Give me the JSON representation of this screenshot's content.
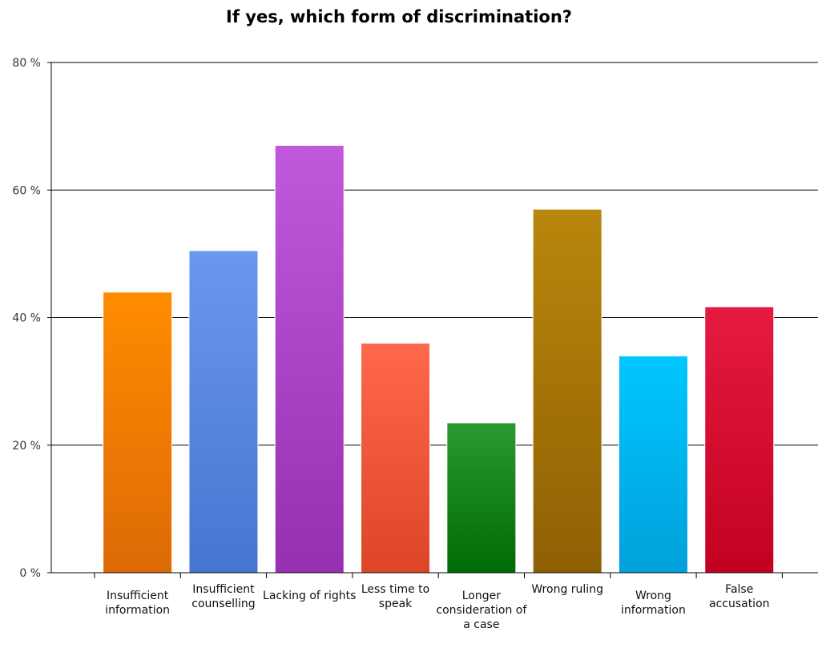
{
  "chart_data": {
    "type": "bar",
    "title": "If yes, which form of discrimination?",
    "xlabel": "",
    "ylabel": "",
    "ylim": [
      0,
      80
    ],
    "y_ticks": [
      "0 %",
      "20 %",
      "40 %",
      "60 %",
      "80 %"
    ],
    "y_tick_values": [
      0,
      20,
      40,
      60,
      80
    ],
    "grid": true,
    "categories": [
      [
        "Insufficient",
        "information"
      ],
      [
        "Insufficient",
        "counselling"
      ],
      [
        "Lacking of rights"
      ],
      [
        "Less time to",
        "speak"
      ],
      [
        "Longer",
        "consideration of",
        "a case"
      ],
      [
        "Wrong ruling"
      ],
      [
        "Wrong",
        "information"
      ],
      [
        "False",
        "accusation"
      ]
    ],
    "values": [
      44,
      50.5,
      67,
      36,
      23.5,
      57,
      34,
      41.7
    ],
    "colors": [
      [
        "#ff8c00",
        "#dd6a06"
      ],
      [
        "#6b97ee",
        "#4576d0"
      ],
      [
        "#c059dc",
        "#9530b0"
      ],
      [
        "#ff684c",
        "#dd4527"
      ],
      [
        "#2a9a2f",
        "#006a05"
      ],
      [
        "#b9870c",
        "#8e6004"
      ],
      [
        "#00c6ff",
        "#00a0da"
      ],
      [
        "#e61a40",
        "#c20122"
      ]
    ]
  }
}
